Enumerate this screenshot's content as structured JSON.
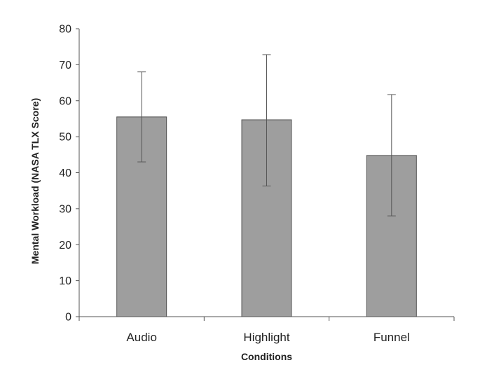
{
  "chart_data": {
    "type": "bar",
    "categories": [
      "Audio",
      "Highlight",
      "Funnel"
    ],
    "values": [
      55.5,
      54.7,
      44.8
    ],
    "error_low": [
      43,
      36.3,
      28
    ],
    "error_high": [
      68,
      72.8,
      61.7
    ],
    "xlabel": "Conditions",
    "ylabel": "Mental Workload (NASA TLX Score)",
    "ylim": [
      0,
      80
    ],
    "yticks": [
      0,
      10,
      20,
      30,
      40,
      50,
      60,
      70,
      80
    ],
    "grid": false,
    "legend": "none",
    "colors": {
      "bar_fill": "#9e9e9e",
      "bar_stroke": "#555555",
      "error_bar": "#555555"
    }
  }
}
